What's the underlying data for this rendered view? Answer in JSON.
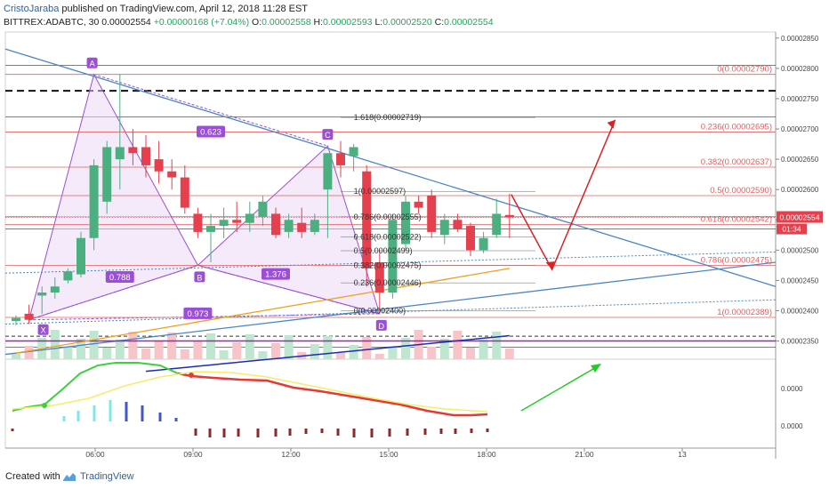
{
  "header": {
    "author": "CristoJaraba",
    "published": "published on TradingView.com, April 12, 2018 11:28 EST",
    "symbol": "BITTREX:ADABTC, 30",
    "last": "0.00002554",
    "change": "+0.00000168 (+7.04%)",
    "o_label": "O:",
    "o": "0.00002558",
    "h_label": "H:",
    "h": "0.00002593",
    "l_label": "L:",
    "l": "0.00002520",
    "c_label": "C:",
    "c": "0.00002554"
  },
  "footer": {
    "created": "Created with",
    "brand": "TradingView"
  },
  "colors": {
    "up": "#4caf80",
    "down": "#e5404d",
    "trend": "#4a86c8",
    "pattern": "#9b4fd6",
    "fib": "#e06060",
    "arrow_red": "#e02020",
    "arrow_green": "#22cc22"
  },
  "chart_data": {
    "type": "candlestick",
    "y_axis_labels": [
      "0.00002850",
      "0.00002800",
      "0.00002750",
      "0.00002700",
      "0.00002650",
      "0.00002600",
      "0.00002550",
      "0.00002500",
      "0.00002450",
      "0.00002400",
      "0.00002350"
    ],
    "ylim": [
      2.32e-05,
      2.86e-05
    ],
    "x_tick_labels": [
      "06:00",
      "09:00",
      "12:00",
      "15:00",
      "18:00",
      "21:00",
      "13"
    ],
    "price_tag": "0.00002554",
    "time_tag": "01:34",
    "candles": [
      {
        "o": 2.383e-05,
        "h": 2.392e-05,
        "l": 2.376e-05,
        "c": 2.388e-05
      },
      {
        "o": 2.395e-05,
        "h": 2.41e-05,
        "l": 2.378e-05,
        "c": 2.385e-05
      },
      {
        "o": 2.425e-05,
        "h": 2.44e-05,
        "l": 2.395e-05,
        "c": 2.43e-05
      },
      {
        "o": 2.43e-05,
        "h": 2.455e-05,
        "l": 2.42e-05,
        "c": 2.44e-05
      },
      {
        "o": 2.45e-05,
        "h": 2.47e-05,
        "l": 2.445e-05,
        "c": 2.465e-05
      },
      {
        "o": 2.46e-05,
        "h": 2.53e-05,
        "l": 2.455e-05,
        "c": 2.52e-05
      },
      {
        "o": 2.52e-05,
        "h": 2.65e-05,
        "l": 2.5e-05,
        "c": 2.64e-05
      },
      {
        "o": 2.58e-05,
        "h": 2.68e-05,
        "l": 2.56e-05,
        "c": 2.67e-05
      },
      {
        "o": 2.65e-05,
        "h": 2.79e-05,
        "l": 2.6e-05,
        "c": 2.67e-05
      },
      {
        "o": 2.67e-05,
        "h": 2.7e-05,
        "l": 2.64e-05,
        "c": 2.66e-05
      },
      {
        "o": 2.67e-05,
        "h": 2.69e-05,
        "l": 2.62e-05,
        "c": 2.64e-05
      },
      {
        "o": 2.65e-05,
        "h": 2.68e-05,
        "l": 2.61e-05,
        "c": 2.63e-05
      },
      {
        "o": 2.63e-05,
        "h": 2.65e-05,
        "l": 2.6e-05,
        "c": 2.62e-05
      },
      {
        "o": 2.62e-05,
        "h": 2.64e-05,
        "l": 2.56e-05,
        "c": 2.57e-05
      },
      {
        "o": 2.56e-05,
        "h": 2.57e-05,
        "l": 2.52e-05,
        "c": 2.53e-05
      },
      {
        "o": 2.53e-05,
        "h": 2.56e-05,
        "l": 2.48e-05,
        "c": 2.54e-05
      },
      {
        "o": 2.54e-05,
        "h": 2.57e-05,
        "l": 2.52e-05,
        "c": 2.55e-05
      },
      {
        "o": 2.55e-05,
        "h": 2.58e-05,
        "l": 2.53e-05,
        "c": 2.545e-05
      },
      {
        "o": 2.545e-05,
        "h": 2.58e-05,
        "l": 2.53e-05,
        "c": 2.56e-05
      },
      {
        "o": 2.555e-05,
        "h": 2.59e-05,
        "l": 2.54e-05,
        "c": 2.58e-05
      },
      {
        "o": 2.56e-05,
        "h": 2.57e-05,
        "l": 2.52e-05,
        "c": 2.525e-05
      },
      {
        "o": 2.53e-05,
        "h": 2.56e-05,
        "l": 2.52e-05,
        "c": 2.55e-05
      },
      {
        "o": 2.545e-05,
        "h": 2.57e-05,
        "l": 2.52e-05,
        "c": 2.53e-05
      },
      {
        "o": 2.53e-05,
        "h": 2.56e-05,
        "l": 2.525e-05,
        "c": 2.55e-05
      },
      {
        "o": 2.6e-05,
        "h": 2.66e-05,
        "l": 2.52e-05,
        "c": 2.66e-05
      },
      {
        "o": 2.66e-05,
        "h": 2.68e-05,
        "l": 2.62e-05,
        "c": 2.64e-05
      },
      {
        "o": 2.655e-05,
        "h": 2.675e-05,
        "l": 2.63e-05,
        "c": 2.67e-05
      },
      {
        "o": 2.63e-05,
        "h": 2.64e-05,
        "l": 2.44e-05,
        "c": 2.47e-05
      },
      {
        "o": 2.48e-05,
        "h": 2.5e-05,
        "l": 2.4e-05,
        "c": 2.43e-05
      },
      {
        "o": 2.43e-05,
        "h": 2.56e-05,
        "l": 2.42e-05,
        "c": 2.55e-05
      },
      {
        "o": 2.51e-05,
        "h": 2.59e-05,
        "l": 2.5e-05,
        "c": 2.58e-05
      },
      {
        "o": 2.58e-05,
        "h": 2.59e-05,
        "l": 2.56e-05,
        "c": 2.57e-05
      },
      {
        "o": 2.59e-05,
        "h": 2.6e-05,
        "l": 2.52e-05,
        "c": 2.53e-05
      },
      {
        "o": 2.525e-05,
        "h": 2.56e-05,
        "l": 2.51e-05,
        "c": 2.55e-05
      },
      {
        "o": 2.55e-05,
        "h": 2.56e-05,
        "l": 2.53e-05,
        "c": 2.535e-05
      },
      {
        "o": 2.54e-05,
        "h": 2.545e-05,
        "l": 2.49e-05,
        "c": 2.5e-05
      },
      {
        "o": 2.5e-05,
        "h": 2.53e-05,
        "l": 2.495e-05,
        "c": 2.52e-05
      },
      {
        "o": 2.525e-05,
        "h": 2.585e-05,
        "l": 2.52e-05,
        "c": 2.56e-05
      },
      {
        "o": 2.558e-05,
        "h": 2.593e-05,
        "l": 2.52e-05,
        "c": 2.554e-05
      }
    ],
    "pattern_labels": [
      "X",
      "A",
      "B",
      "C",
      "D"
    ],
    "ratio_labels": [
      "0.623",
      "0.788",
      "1.376",
      "0.973"
    ],
    "fib_right": [
      {
        "text": "0(0.00002790)",
        "v": 2.79e-05
      },
      {
        "text": "0.236(0.00002695)",
        "v": 2.695e-05
      },
      {
        "text": "0.382(0.00002637)",
        "v": 2.637e-05
      },
      {
        "text": "0.5(0.00002590)",
        "v": 2.59e-05
      },
      {
        "text": "0.618(0.00002542)",
        "v": 2.542e-05
      },
      {
        "text": "0.786(0.00002475)",
        "v": 2.475e-05
      },
      {
        "text": "1(0.00002389)",
        "v": 2.389e-05
      }
    ],
    "fib_mid": [
      {
        "text": "1.618(0.00002719)",
        "v": 2.719e-05
      },
      {
        "text": "1(0.00002597)",
        "v": 2.597e-05
      },
      {
        "text": "0.786(0.00002555)",
        "v": 2.555e-05
      },
      {
        "text": "0.618(0.00002522)",
        "v": 2.522e-05
      },
      {
        "text": "0.5(0.00002499)",
        "v": 2.499e-05
      },
      {
        "text": "0.382(0.00002475)",
        "v": 2.475e-05
      },
      {
        "text": "0.236(0.00002446)",
        "v": 2.446e-05
      },
      {
        "text": "0(0.00002400)",
        "v": 2.4e-05
      }
    ],
    "osc_labels": [
      "0.0000",
      "0.0000"
    ]
  }
}
